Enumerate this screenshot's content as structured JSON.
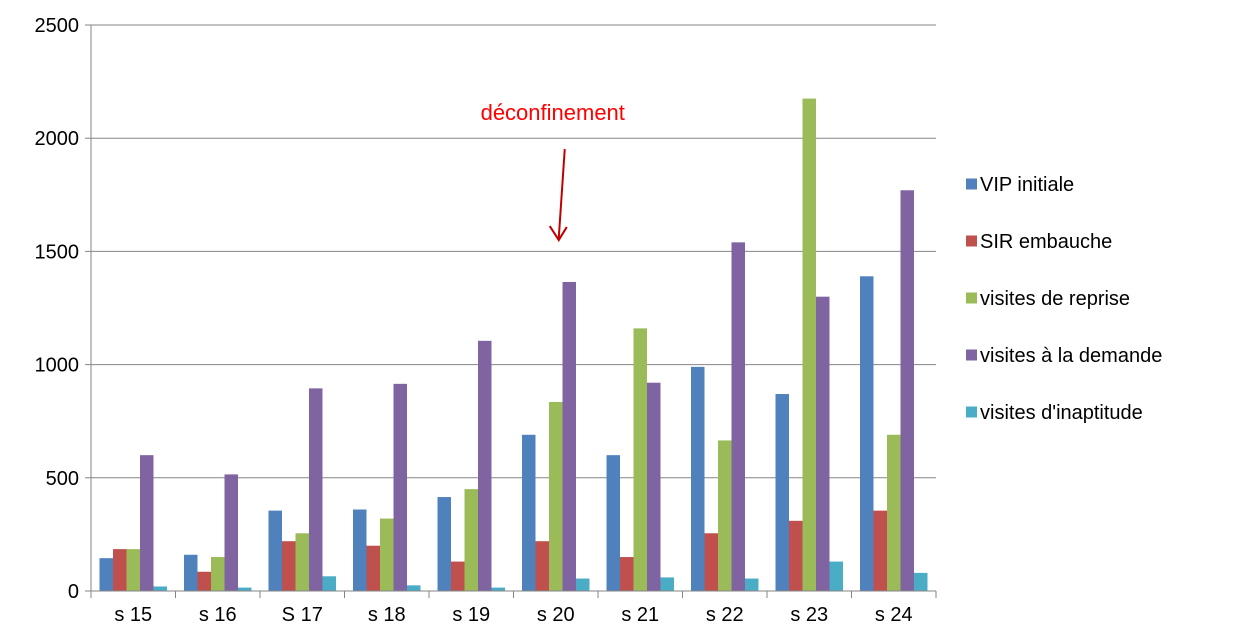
{
  "chart_data": {
    "type": "bar",
    "title": "",
    "xlabel": "",
    "ylabel": "",
    "ylim": [
      0,
      2500
    ],
    "yticks": [
      0,
      500,
      1000,
      1500,
      2000,
      2500
    ],
    "grid": "horizontal",
    "legend_position": "right",
    "categories": [
      "s 15",
      "s 16",
      "S 17",
      "s 18",
      "s 19",
      "s 20",
      "s 21",
      "s 22",
      "s 23",
      "s 24"
    ],
    "series": [
      {
        "name": "VIP initiale",
        "color": "#4f81bd",
        "values": [
          145,
          160,
          355,
          360,
          415,
          690,
          600,
          990,
          870,
          1390
        ]
      },
      {
        "name": "SIR embauche",
        "color": "#c0504d",
        "values": [
          185,
          85,
          220,
          200,
          130,
          220,
          150,
          255,
          310,
          355
        ]
      },
      {
        "name": "visites de reprise",
        "color": "#9bbb59",
        "values": [
          185,
          150,
          255,
          320,
          450,
          835,
          1160,
          665,
          2175,
          690
        ]
      },
      {
        "name": "visites à la demande",
        "color": "#8064a2",
        "values": [
          600,
          515,
          895,
          915,
          1105,
          1365,
          920,
          1540,
          1300,
          1770
        ]
      },
      {
        "name": "visites d'inaptitude",
        "color": "#4bacc6",
        "values": [
          20,
          15,
          65,
          25,
          15,
          55,
          60,
          55,
          130,
          80
        ]
      }
    ],
    "annotations": [
      {
        "text": "déconfinement",
        "category": "s 20",
        "value": 2080,
        "arrow_to_value": 1550,
        "color": "#ff0000",
        "arrow_color": "#c00000"
      }
    ]
  }
}
